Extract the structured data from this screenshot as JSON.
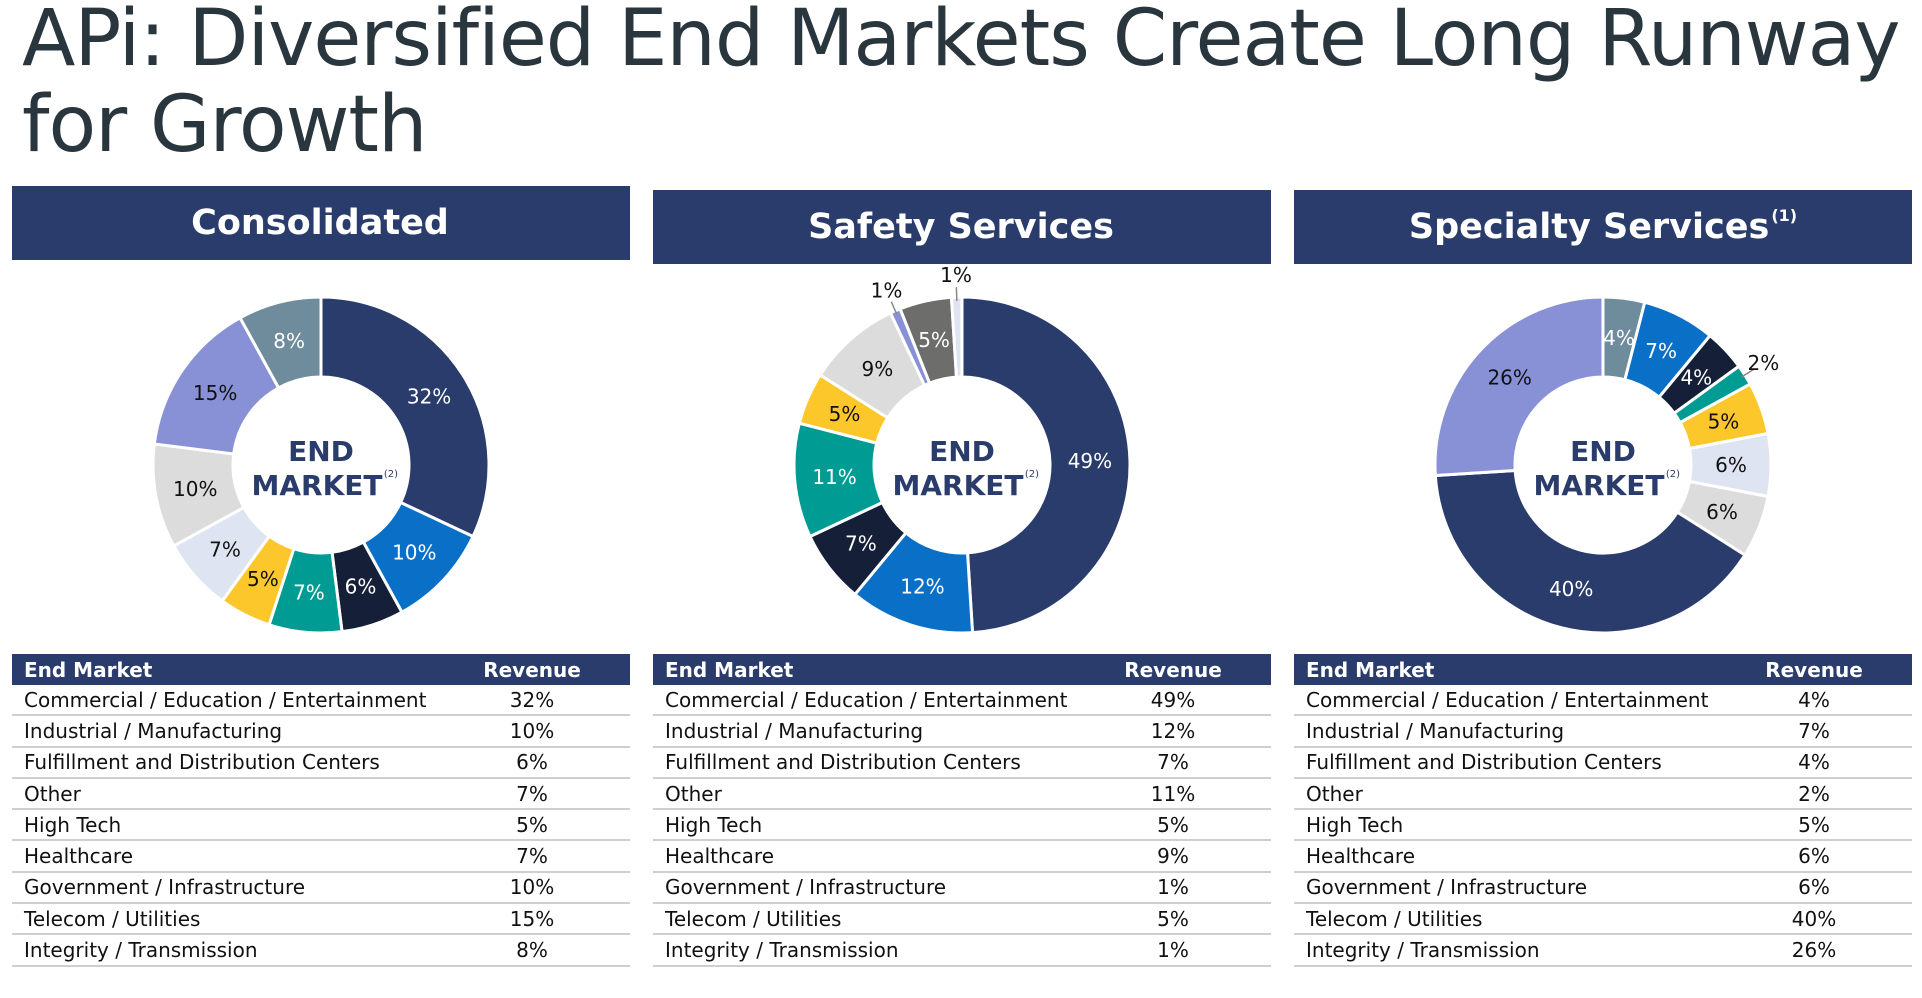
{
  "page": {
    "title": "APi: Diversified End Markets Create Long Runway for Growth"
  },
  "table_headers": {
    "col1": "End Market",
    "col2": "Revenue"
  },
  "center_label": {
    "line1": "END",
    "line2": "MARKET",
    "note": "(2)"
  },
  "colors": {
    "header_bg": "#2a3c6b",
    "slices": [
      "#2a3c6b",
      "#0a6fc7",
      "#152038",
      "#009c94",
      "#fcc72b",
      "#dfe4f2",
      "#dcdcdc",
      "#8891d6",
      "#6e8c9b"
    ]
  },
  "chart_data": [
    {
      "type": "pie",
      "title": "Consolidated",
      "title_note": "",
      "categories": [
        "Commercial / Education / Entertainment",
        "Industrial / Manufacturing",
        "Fulfillment and Distribution Centers",
        "Other",
        "High Tech",
        "Healthcare",
        "Government / Infrastructure",
        "Telecom / Utilities",
        "Integrity / Transmission"
      ],
      "values": [
        32,
        10,
        6,
        7,
        5,
        7,
        10,
        15,
        8
      ],
      "slice_colors": [
        "#2a3c6b",
        "#0a6fc7",
        "#152038",
        "#009c94",
        "#fcc72b",
        "#dfe4f2",
        "#dcdcdc",
        "#8891d6",
        "#6e8c9b"
      ],
      "data_labels": [
        "32%",
        "10%",
        "6%",
        "7%",
        "5%",
        "7%",
        "10%",
        "15%",
        "8%"
      ],
      "table_values": [
        "32%",
        "10%",
        "6%",
        "7%",
        "5%",
        "7%",
        "10%",
        "15%",
        "8%"
      ]
    },
    {
      "type": "pie",
      "title": "Safety Services",
      "title_note": "",
      "categories": [
        "Commercial / Education / Entertainment",
        "Industrial / Manufacturing",
        "Fulfillment and Distribution Centers",
        "Other",
        "High Tech",
        "Healthcare",
        "Government / Infrastructure",
        "Telecom / Utilities",
        "Integrity / Transmission"
      ],
      "values": [
        49,
        12,
        7,
        11,
        5,
        9,
        1,
        5,
        1
      ],
      "slice_colors": [
        "#2a3c6b",
        "#0a6fc7",
        "#152038",
        "#009c94",
        "#fcc72b",
        "#dcdcdc",
        "#8891d6",
        "#6d6e6b",
        "#dfe4f2"
      ],
      "data_labels": [
        "49%",
        "12%",
        "7%",
        "11%",
        "5%",
        "9%",
        "1%",
        "5%",
        "1%"
      ],
      "table_values": [
        "49%",
        "12%",
        "7%",
        "11%",
        "5%",
        "9%",
        "1%",
        "5%",
        "1%"
      ]
    },
    {
      "type": "pie",
      "title": "Specialty Services",
      "title_note": "(1)",
      "categories": [
        "Commercial / Education / Entertainment",
        "Industrial / Manufacturing",
        "Fulfillment and Distribution Centers",
        "Other",
        "High Tech",
        "Healthcare",
        "Government / Infrastructure",
        "Telecom / Utilities",
        "Integrity / Transmission"
      ],
      "values": [
        4,
        7,
        4,
        2,
        5,
        6,
        6,
        40,
        26
      ],
      "slice_colors": [
        "#6e8c9b",
        "#0a6fc7",
        "#152038",
        "#009c94",
        "#fcc72b",
        "#dfe4f2",
        "#dcdcdc",
        "#2a3c6b",
        "#8891d6"
      ],
      "data_labels": [
        "4%",
        "7%",
        "4%",
        "2%",
        "5%",
        "6%",
        "6%",
        "40%",
        "26%"
      ],
      "table_values": [
        "4%",
        "7%",
        "4%",
        "2%",
        "5%",
        "6%",
        "6%",
        "40%",
        "26%"
      ]
    }
  ]
}
